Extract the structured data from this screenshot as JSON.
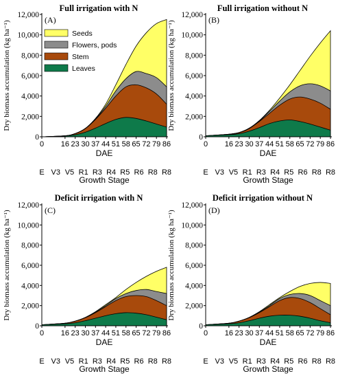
{
  "chart_data": [
    {
      "type": "area",
      "panel_id": "A",
      "title": "Full irrigation with N",
      "panel_label": "(A)",
      "ylabel": "Dry biomass accumulation (kg ha⁻¹)",
      "xlabel": "DAE",
      "xlabel2": "Growth Stage",
      "x_ticks": [
        "0",
        "16",
        "23",
        "30",
        "37",
        "44",
        "51",
        "58",
        "65",
        "72",
        "79",
        "86"
      ],
      "stage_ticks": [
        "E",
        "V3",
        "V5",
        "R1",
        "R3",
        "R4",
        "R5",
        "R6",
        "R8",
        "R8"
      ],
      "ylim": [
        0,
        12000
      ],
      "y_ticks": [
        "0",
        "2,000",
        "4,000",
        "6,000",
        "8,000",
        "10,000",
        "12,000"
      ],
      "legend": [
        "Seeds",
        "Flowers, pods",
        "Stem",
        "Leaves"
      ],
      "x": [
        0,
        16,
        23,
        30,
        37,
        44,
        51,
        58,
        65,
        72,
        79,
        86
      ],
      "series": [
        {
          "name": "Leaves",
          "cumulative": [
            0,
            80,
            200,
            450,
            850,
            1300,
            1700,
            1900,
            1800,
            1550,
            1250,
            950
          ]
        },
        {
          "name": "Stem",
          "cumulative": [
            0,
            100,
            300,
            800,
            1700,
            2800,
            4000,
            4900,
            5100,
            4800,
            4200,
            3200
          ]
        },
        {
          "name": "Flowers, pods",
          "cumulative": [
            0,
            100,
            310,
            820,
            1750,
            3000,
            4500,
            5700,
            6400,
            6200,
            5800,
            4900
          ]
        },
        {
          "name": "Seeds",
          "cumulative": [
            0,
            100,
            320,
            830,
            1800,
            3200,
            5100,
            7100,
            8900,
            10200,
            11100,
            11500
          ]
        }
      ]
    },
    {
      "type": "area",
      "panel_id": "B",
      "title": "Full irrigation without N",
      "panel_label": "(B)",
      "ylabel": "Dry biomass accumulation (kg ha⁻¹)",
      "xlabel": "DAE",
      "xlabel2": "Growth Stage",
      "x_ticks": [
        "0",
        "16",
        "23",
        "30",
        "37",
        "44",
        "51",
        "58",
        "65",
        "72",
        "79",
        "86"
      ],
      "stage_ticks": [
        "E",
        "V3",
        "V5",
        "R1",
        "R3",
        "R4",
        "R5",
        "R6",
        "R8",
        "R8"
      ],
      "ylim": [
        0,
        12000
      ],
      "y_ticks": [
        "0",
        "2,000",
        "4,000",
        "6,000",
        "8,000",
        "10,000",
        "12,000"
      ],
      "x": [
        0,
        16,
        23,
        30,
        37,
        44,
        51,
        58,
        65,
        72,
        79,
        86
      ],
      "series": [
        {
          "name": "Leaves",
          "cumulative": [
            100,
            200,
            300,
            550,
            900,
            1300,
            1550,
            1650,
            1500,
            1250,
            950,
            650
          ]
        },
        {
          "name": "Stem",
          "cumulative": [
            100,
            250,
            400,
            800,
            1500,
            2300,
            3100,
            3700,
            3900,
            3700,
            3300,
            2700
          ]
        },
        {
          "name": "Flowers, pods",
          "cumulative": [
            100,
            250,
            410,
            820,
            1550,
            2500,
            3500,
            4400,
            5000,
            5200,
            5000,
            4500
          ]
        },
        {
          "name": "Seeds",
          "cumulative": [
            100,
            250,
            420,
            850,
            1600,
            2600,
            3800,
            5100,
            6500,
            7900,
            9200,
            10400
          ]
        }
      ]
    },
    {
      "type": "area",
      "panel_id": "C",
      "title": "Deficit irrigation with N",
      "panel_label": "(C)",
      "ylabel": "Dry biomass accumulation (kg ha⁻¹)",
      "xlabel": "DAE",
      "xlabel2": "Growth Stage",
      "x_ticks": [
        "0",
        "16",
        "23",
        "30",
        "37",
        "44",
        "51",
        "58",
        "65",
        "72",
        "79",
        "86"
      ],
      "stage_ticks": [
        "E",
        "V3",
        "V5",
        "R1",
        "R3",
        "R4",
        "R5",
        "R6",
        "R8",
        "R8"
      ],
      "ylim": [
        0,
        12000
      ],
      "y_ticks": [
        "0",
        "2,000",
        "4,000",
        "6,000",
        "8,000",
        "10,000",
        "12,000"
      ],
      "x": [
        0,
        16,
        23,
        30,
        37,
        44,
        51,
        58,
        65,
        72,
        79,
        86
      ],
      "series": [
        {
          "name": "Leaves",
          "cumulative": [
            100,
            200,
            300,
            500,
            750,
            1000,
            1200,
            1300,
            1250,
            1100,
            850,
            600
          ]
        },
        {
          "name": "Stem",
          "cumulative": [
            100,
            250,
            450,
            800,
            1300,
            1900,
            2500,
            2900,
            3000,
            2900,
            2500,
            2000
          ]
        },
        {
          "name": "Flowers, pods",
          "cumulative": [
            100,
            250,
            460,
            820,
            1350,
            2000,
            2700,
            3200,
            3500,
            3600,
            3400,
            3200
          ]
        },
        {
          "name": "Seeds",
          "cumulative": [
            100,
            250,
            470,
            840,
            1400,
            2100,
            2800,
            3600,
            4300,
            4900,
            5400,
            5800
          ]
        }
      ]
    },
    {
      "type": "area",
      "panel_id": "D",
      "title": "Deficit irrigation without N",
      "panel_label": "(D)",
      "ylabel": "Dry biomass accumulation (kg ha⁻¹)",
      "xlabel": "DAE",
      "xlabel2": "Growth Stage",
      "x_ticks": [
        "0",
        "16",
        "23",
        "30",
        "37",
        "44",
        "51",
        "58",
        "65",
        "72",
        "79",
        "86"
      ],
      "stage_ticks": [
        "E",
        "V3",
        "V5",
        "R1",
        "R3",
        "R4",
        "R5",
        "R6",
        "R8",
        "R8"
      ],
      "ylim": [
        0,
        12000
      ],
      "y_ticks": [
        "0",
        "2,000",
        "4,000",
        "6,000",
        "8,000",
        "10,000",
        "12,000"
      ],
      "x": [
        0,
        16,
        23,
        30,
        37,
        44,
        51,
        58,
        65,
        72,
        79,
        86
      ],
      "series": [
        {
          "name": "Leaves",
          "cumulative": [
            100,
            200,
            300,
            500,
            750,
            950,
            1050,
            1050,
            950,
            750,
            500,
            300
          ]
        },
        {
          "name": "Stem",
          "cumulative": [
            100,
            250,
            450,
            800,
            1300,
            1900,
            2500,
            2800,
            2700,
            2300,
            1700,
            1100
          ]
        },
        {
          "name": "Flowers, pods",
          "cumulative": [
            100,
            250,
            460,
            820,
            1350,
            2000,
            2700,
            3100,
            3200,
            3000,
            2500,
            2000
          ]
        },
        {
          "name": "Seeds",
          "cumulative": [
            100,
            250,
            470,
            840,
            1400,
            2100,
            2800,
            3400,
            3900,
            4200,
            4300,
            4200
          ]
        }
      ]
    }
  ],
  "colors": {
    "Seeds": "#ffff66",
    "Flowers, pods": "#8c8c8c",
    "Stem": "#a84a0c",
    "Leaves": "#0e7a4a",
    "axis": "#000000",
    "outline": "#000000"
  }
}
